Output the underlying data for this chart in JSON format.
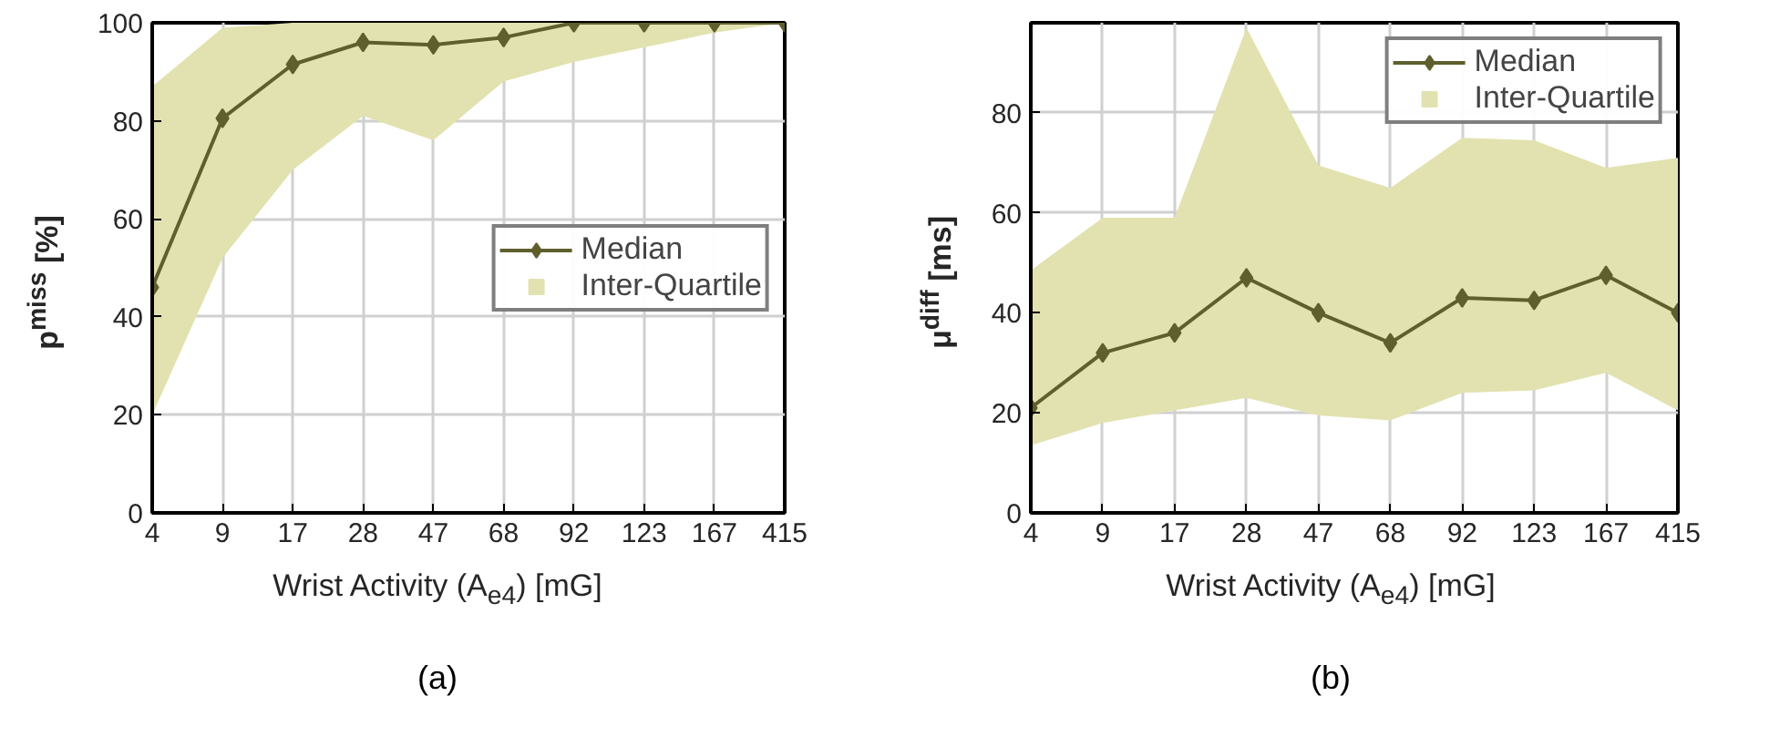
{
  "chart_data": [
    {
      "type": "line",
      "title": "(a)",
      "xlabel": "Wrist Activity (A$_{e4}$) [mG]",
      "ylabel": "p$^{miss}$ [%]",
      "categories": [
        "4",
        "9",
        "17",
        "28",
        "47",
        "68",
        "92",
        "123",
        "167",
        "415"
      ],
      "series": [
        {
          "name": "Median",
          "color": "#5f5f2e",
          "marker": "diamond",
          "values": [
            46,
            80.5,
            91.5,
            96,
            95.5,
            97,
            100,
            100,
            100,
            100
          ],
          "lower": [
            20,
            52,
            70,
            81,
            76,
            88,
            92,
            95,
            98,
            100
          ],
          "upper": [
            87,
            99,
            100,
            100,
            100,
            100,
            100,
            100,
            100,
            100
          ]
        },
        {
          "name": "Inter-Quartile",
          "type": "area",
          "color": "#e2e2b0",
          "values": [
            null,
            null,
            null,
            null,
            null,
            null,
            null,
            null,
            null,
            null
          ]
        }
      ],
      "ylim": [
        0,
        100
      ],
      "yticks": [
        0,
        20,
        40,
        60,
        80,
        100
      ],
      "grid": true,
      "legend": "right"
    },
    {
      "type": "line",
      "title": "(b)",
      "xlabel": "Wrist Activity (A$_{e4}$) [mG]",
      "ylabel": "μ$^{diff}$ [ms]",
      "categories": [
        "4",
        "9",
        "17",
        "28",
        "47",
        "68",
        "92",
        "123",
        "167",
        "415"
      ],
      "series": [
        {
          "name": "Median",
          "color": "#5f5f2e",
          "marker": "diamond",
          "values": [
            21,
            32,
            36,
            47,
            40,
            34,
            43,
            42.5,
            47.5,
            40
          ],
          "lower": [
            13.5,
            18,
            20.5,
            23,
            19.5,
            18.5,
            24,
            24.5,
            28,
            20.5
          ],
          "upper": [
            48.5,
            59,
            59,
            97,
            69.5,
            65,
            75,
            74.5,
            69,
            71
          ]
        },
        {
          "name": "Inter-Quartile",
          "type": "area",
          "color": "#e2e2b0",
          "values": [
            null,
            null,
            null,
            null,
            null,
            null,
            null,
            null,
            null,
            null
          ]
        }
      ],
      "ylim": [
        0,
        98
      ],
      "yticks": [
        0,
        20,
        40,
        60,
        80
      ],
      "grid": true,
      "legend": "top right"
    }
  ]
}
